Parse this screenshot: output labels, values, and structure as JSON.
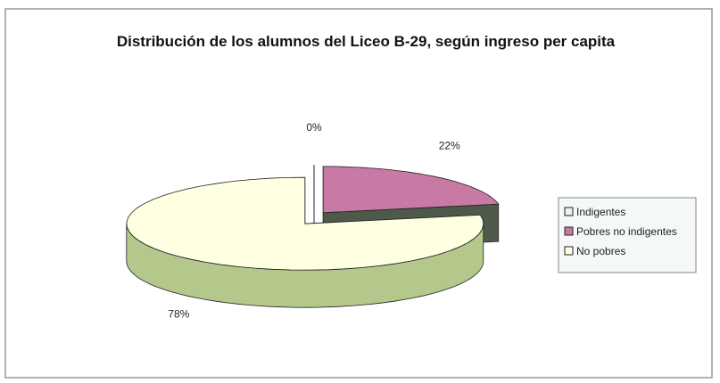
{
  "chart_data": {
    "type": "pie3d",
    "title": "Distribución de los alumnos del Liceo B-29, según ingreso per capita",
    "categories": [
      "Indigentes",
      "Pobres no indigentes",
      "No pobres"
    ],
    "values": [
      0,
      22,
      78
    ],
    "value_labels": [
      "0%",
      "22%",
      "78%"
    ],
    "colors": [
      "#eeeef4",
      "#c87aa4",
      "#ffffe2"
    ],
    "side_colors": [
      "#333333",
      "#4d5a4a",
      "#b4c88c"
    ],
    "legend": "right"
  }
}
